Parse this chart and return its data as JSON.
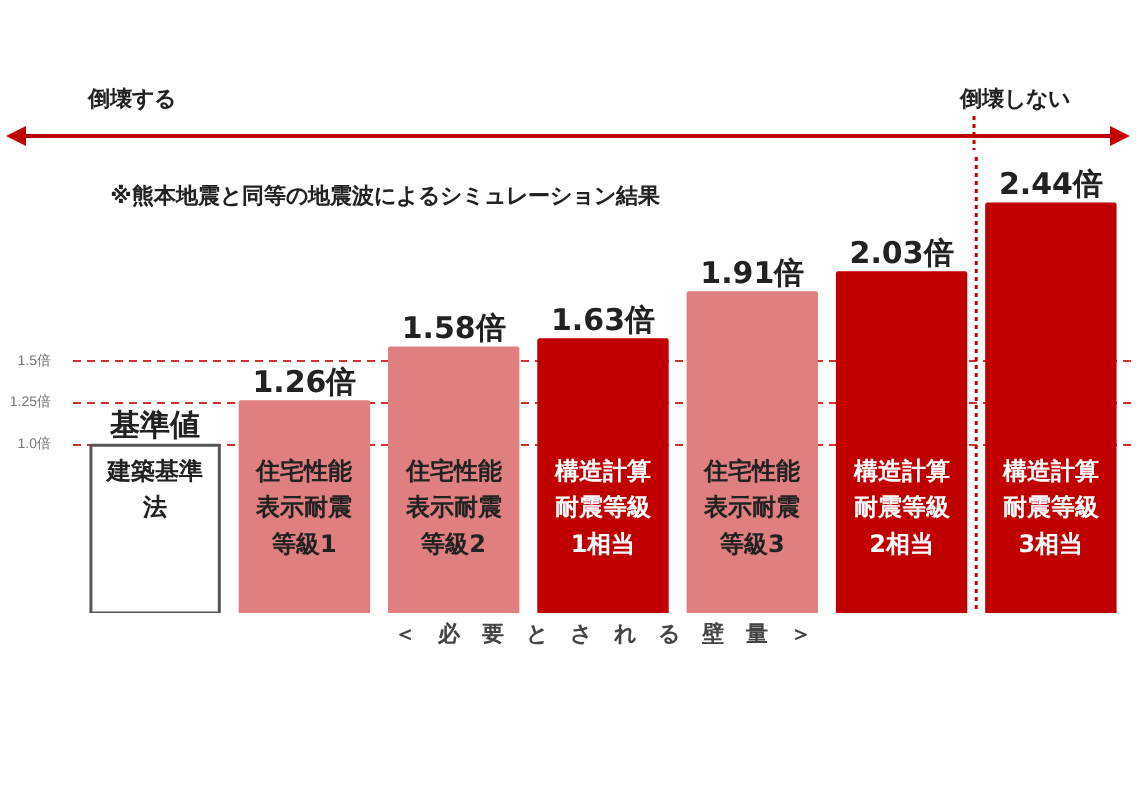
{
  "chart_data": {
    "type": "bar",
    "categories": [
      "建築基準法",
      "住宅性能表示耐震等級1",
      "住宅性能表示耐震等級2",
      "構造計算耐震等級1相当",
      "住宅性能表示耐震等級3",
      "構造計算耐震等級2相当",
      "構造計算耐震等級3相当"
    ],
    "values": [
      1.0,
      1.26,
      1.58,
      1.63,
      1.91,
      2.03,
      2.44
    ],
    "colors": [
      "#ffffff",
      "#e07f80",
      "#e07f80",
      "#c00000",
      "#e07f80",
      "#c00000",
      "#c00000"
    ],
    "value_labels": [
      "基準値",
      "1.26倍",
      "1.58倍",
      "1.63倍",
      "1.91倍",
      "2.03倍",
      "2.44倍"
    ],
    "xlabel": "＜　必　要　と　さ　れ　る　壁　量　＞",
    "ylim": [
      0,
      2.72
    ],
    "yticks": [
      {
        "value": 1.0,
        "label": "1.0倍"
      },
      {
        "value": 1.25,
        "label": "1.25倍"
      },
      {
        "value": 1.5,
        "label": "1.5倍"
      }
    ],
    "grid": "y",
    "annotations": [
      "倒壊する",
      "倒壊しない",
      "※熊本地震と同等の地震波によるシミュレーション結果"
    ]
  }
}
